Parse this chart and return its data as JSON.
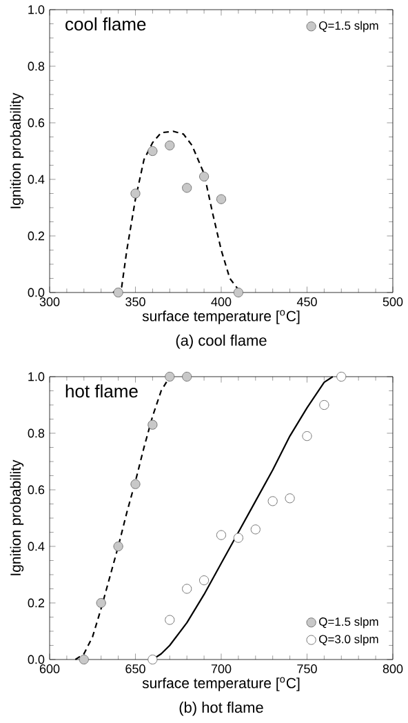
{
  "chart_data": [
    {
      "type": "scatter",
      "xlabel": "surface temperature [$^{o}$C]",
      "ylabel": "Ignition probability",
      "annotations": [
        "cool flame",
        "(a) cool flame"
      ],
      "xlim": [
        300,
        500
      ],
      "xticks": [
        300,
        350,
        400,
        450,
        500
      ],
      "ylim": [
        0,
        1
      ],
      "yticks": [
        {
          "value": 0,
          "label": "0.0"
        },
        {
          "value": 0.2,
          "label": "0.2"
        },
        {
          "value": 0.4,
          "label": "0.4"
        },
        {
          "value": 0.6,
          "label": "0.6"
        },
        {
          "value": 0.8,
          "label": "0.8"
        },
        {
          "value": 1,
          "label": "1.0"
        }
      ],
      "legend": "top right",
      "marker": "circle",
      "series": [
        {
          "name": "Q=1.5 slpm",
          "color": "#c8c8c8",
          "x": [
            340,
            350,
            360,
            370,
            380,
            390,
            400,
            410
          ],
          "values": [
            0,
            0.35,
            0.5,
            0.52,
            0.37,
            0.41,
            0.33,
            0
          ]
        },
        {
          "type": "line",
          "marker": "none",
          "line_style": "dashed",
          "color": "#000000",
          "x": [
            337,
            342,
            345,
            350,
            355,
            360,
            365,
            372,
            378,
            383,
            390,
            395,
            400,
            405,
            410,
            412
          ],
          "values": [
            0,
            0.02,
            0.15,
            0.33,
            0.47,
            0.53,
            0.565,
            0.57,
            0.56,
            0.52,
            0.42,
            0.28,
            0.15,
            0.05,
            0.01,
            0
          ]
        }
      ]
    },
    {
      "type": "scatter",
      "xlabel": "surface temperature [$^{o}$C]",
      "ylabel": "Ignition probability",
      "annotations": [
        "hot flame",
        "(b) hot flame"
      ],
      "xlim": [
        600,
        800
      ],
      "xticks": [
        600,
        650,
        700,
        750,
        800
      ],
      "ylim": [
        0,
        1
      ],
      "yticks": [
        {
          "value": 0,
          "label": "0.0"
        },
        {
          "value": 0.2,
          "label": "0.2"
        },
        {
          "value": 0.4,
          "label": "0.4"
        },
        {
          "value": 0.6,
          "label": "0.6"
        },
        {
          "value": 0.8,
          "label": "0.8"
        },
        {
          "value": 1,
          "label": "1.0"
        }
      ],
      "legend": "bottom right",
      "marker": "circle",
      "series": [
        {
          "name": "Q=1.5 slpm",
          "color": "#c8c8c8",
          "x": [
            620,
            630,
            640,
            650,
            660,
            670,
            680
          ],
          "values": [
            0,
            0.2,
            0.4,
            0.62,
            0.83,
            1.0,
            1.0
          ]
        },
        {
          "name": "Q=3.0 slpm",
          "color": "#ffffff",
          "x": [
            660,
            670,
            680,
            690,
            700,
            710,
            720,
            730,
            740,
            750,
            760,
            770
          ],
          "values": [
            0,
            0.14,
            0.25,
            0.28,
            0.44,
            0.43,
            0.46,
            0.56,
            0.57,
            0.79,
            0.9,
            1.0
          ]
        },
        {
          "type": "line",
          "marker": "none",
          "line_style": "dashed",
          "color": "#000000",
          "x": [
            615,
            620,
            625,
            630,
            635,
            640,
            645,
            650,
            655,
            660,
            665,
            670
          ],
          "values": [
            0,
            0.02,
            0.08,
            0.18,
            0.29,
            0.4,
            0.52,
            0.63,
            0.75,
            0.86,
            0.95,
            1.0
          ]
        },
        {
          "type": "line",
          "marker": "none",
          "line_style": "solid",
          "color": "#000000",
          "x": [
            660,
            665,
            670,
            680,
            690,
            700,
            710,
            720,
            730,
            740,
            750,
            760,
            765
          ],
          "values": [
            0,
            0.02,
            0.05,
            0.13,
            0.23,
            0.34,
            0.45,
            0.56,
            0.67,
            0.79,
            0.89,
            0.98,
            1.0
          ]
        }
      ]
    }
  ]
}
